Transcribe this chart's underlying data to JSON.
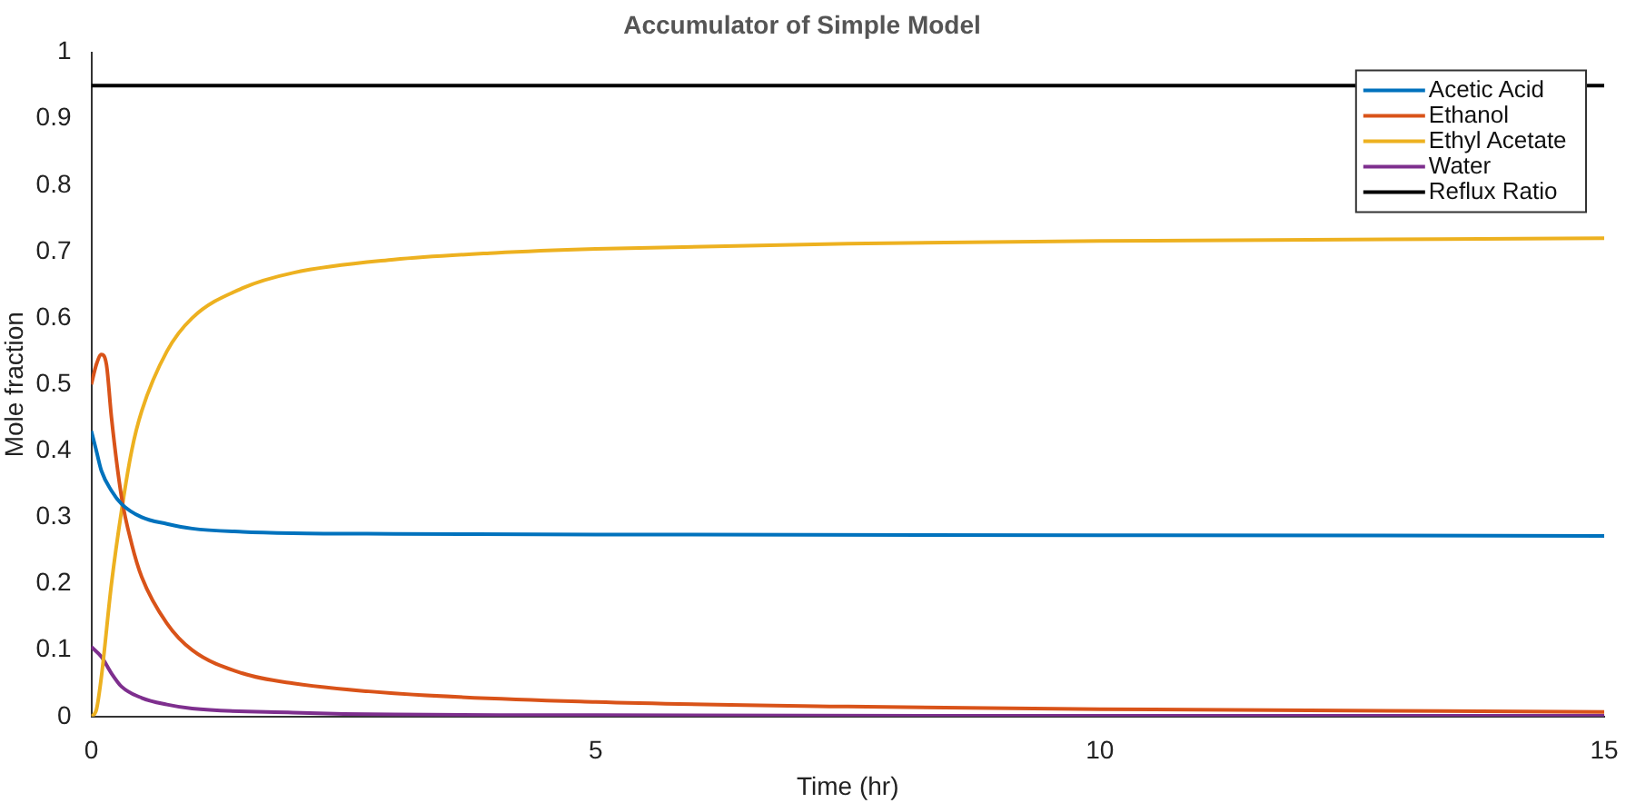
{
  "chart_data": {
    "type": "line",
    "title": "Accumulator of Simple Model",
    "xlabel": "Time (hr)",
    "ylabel": "Mole fraction",
    "xlim": [
      0,
      15
    ],
    "xticks": [
      0,
      5,
      10,
      15
    ],
    "ylim": [
      0,
      1
    ],
    "yticks": [
      0,
      0.1,
      0.2,
      0.3,
      0.4,
      0.5,
      0.6,
      0.7,
      0.8,
      0.9,
      1
    ],
    "grid": false,
    "legend": "top right",
    "marker": "none",
    "line_style": "solid",
    "series": [
      {
        "name": "Acetic Acid",
        "color": "#0072bd",
        "x": [
          0,
          0.05,
          0.1,
          0.2,
          0.3,
          0.5,
          0.75,
          1,
          1.5,
          2,
          3,
          5,
          10,
          15
        ],
        "values": [
          0.43,
          0.4,
          0.37,
          0.34,
          0.32,
          0.3,
          0.29,
          0.283,
          0.278,
          0.276,
          0.275,
          0.274,
          0.273,
          0.272
        ]
      },
      {
        "name": "Ethanol",
        "color": "#d95319",
        "x": [
          0,
          0.05,
          0.1,
          0.15,
          0.2,
          0.3,
          0.4,
          0.5,
          0.75,
          1,
          1.5,
          2,
          3,
          5,
          7.5,
          10,
          15
        ],
        "values": [
          0.5,
          0.53,
          0.545,
          0.53,
          0.45,
          0.33,
          0.26,
          0.21,
          0.14,
          0.1,
          0.065,
          0.05,
          0.035,
          0.022,
          0.015,
          0.011,
          0.007
        ]
      },
      {
        "name": "Ethyl Acetate",
        "color": "#edb120",
        "x": [
          0,
          0.05,
          0.1,
          0.2,
          0.3,
          0.4,
          0.5,
          0.75,
          1,
          1.5,
          2,
          3,
          4,
          5,
          7.5,
          10,
          15
        ],
        "values": [
          0,
          0.01,
          0.06,
          0.2,
          0.31,
          0.4,
          0.46,
          0.55,
          0.6,
          0.645,
          0.668,
          0.688,
          0.698,
          0.704,
          0.712,
          0.716,
          0.72
        ]
      },
      {
        "name": "Water",
        "color": "#7e2f8e",
        "x": [
          0,
          0.1,
          0.2,
          0.3,
          0.5,
          0.75,
          1,
          2,
          3,
          5,
          10,
          15
        ],
        "values": [
          0.105,
          0.09,
          0.065,
          0.045,
          0.028,
          0.018,
          0.012,
          0.006,
          0.003,
          0.002,
          0.001,
          0.001
        ]
      },
      {
        "name": "Reflux Ratio",
        "color": "#000000",
        "x": [
          0,
          15
        ],
        "values": [
          0.95,
          0.95
        ]
      }
    ]
  }
}
